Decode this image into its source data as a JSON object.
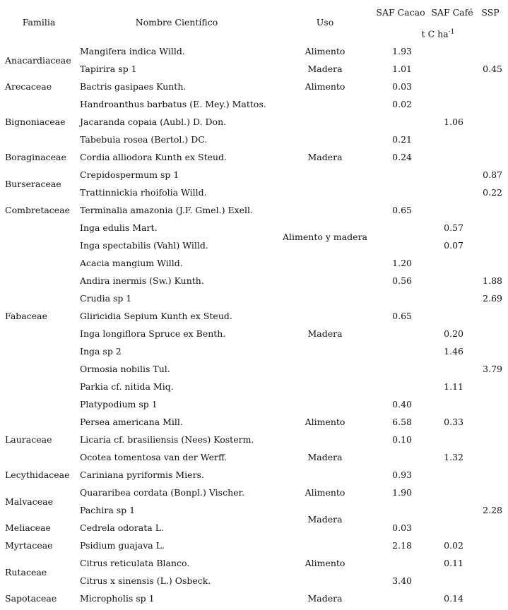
{
  "header": {
    "familia": "Familia",
    "nombre": "Nombre Científico",
    "uso": "Uso",
    "cacao": "SAF Cacao",
    "cafe": "SAF Café",
    "ssp": "SSP",
    "units": {
      "text": "t C ha",
      "sup": "-1"
    }
  },
  "families": [
    {
      "name": "Anacardiaceae",
      "species": [
        {
          "name": "Mangifera indica Willd.",
          "cacao": "1.93",
          "cafe": null,
          "ssp": null
        },
        {
          "name": "Tapirira sp 1",
          "cacao": "1.01",
          "cafe": null,
          "ssp": "0.45"
        }
      ]
    },
    {
      "name": "Arecaceae",
      "species": [
        {
          "name": "Bactris gasipaes Kunth.",
          "cacao": "0.03",
          "cafe": null,
          "ssp": null
        }
      ]
    },
    {
      "name": "Bignoniaceae",
      "species": [
        {
          "name": "Handroanthus barbatus (E. Mey.) Mattos.",
          "cacao": "0.02",
          "cafe": null,
          "ssp": null
        },
        {
          "name": "Jacaranda copaia (Aubl.) D. Don.",
          "cacao": null,
          "cafe": "1.06",
          "ssp": null
        },
        {
          "name": "Tabebuia rosea (Bertol.) DC.",
          "cacao": "0.21",
          "cafe": null,
          "ssp": null
        }
      ]
    },
    {
      "name": "Boraginaceae",
      "species": [
        {
          "name": "Cordia alliodora Kunth ex Steud.",
          "cacao": "0.24",
          "cafe": null,
          "ssp": null
        }
      ]
    },
    {
      "name": "Burseraceae",
      "species": [
        {
          "name": "Crepidospermum sp 1",
          "cacao": null,
          "cafe": null,
          "ssp": "0.87"
        },
        {
          "name": "Trattinnickia rhoifolia Willd.",
          "cacao": null,
          "cafe": null,
          "ssp": "0.22"
        }
      ]
    },
    {
      "name": "Combretaceae",
      "species": [
        {
          "name": "Terminalia amazonia (J.F. Gmel.) Exell.",
          "cacao": "0.65",
          "cafe": null,
          "ssp": null
        }
      ]
    },
    {
      "name": "Fabaceae",
      "species": [
        {
          "name": "Inga edulis Mart.",
          "cacao": null,
          "cafe": "0.57",
          "ssp": null
        },
        {
          "name": "Inga spectabilis (Vahl) Willd.",
          "cacao": null,
          "cafe": "0.07",
          "ssp": null
        },
        {
          "name": "Acacia mangium Willd.",
          "cacao": "1.20",
          "cafe": null,
          "ssp": null
        },
        {
          "name": "Andira inermis (Sw.) Kunth.",
          "cacao": "0.56",
          "cafe": null,
          "ssp": "1.88"
        },
        {
          "name": "Crudia sp 1",
          "cacao": null,
          "cafe": null,
          "ssp": "2.69"
        },
        {
          "name": "Gliricidia Sepium Kunth ex Steud.",
          "cacao": "0.65",
          "cafe": null,
          "ssp": null
        },
        {
          "name": "Inga longiflora Spruce ex Benth.",
          "cacao": null,
          "cafe": "0.20",
          "ssp": null
        },
        {
          "name": "Inga sp 2",
          "cacao": null,
          "cafe": "1.46",
          "ssp": null
        },
        {
          "name": "Ormosia nobilis Tul.",
          "cacao": null,
          "cafe": null,
          "ssp": "3.79"
        },
        {
          "name": "Parkia cf. nitida Miq.",
          "cacao": null,
          "cafe": "1.11",
          "ssp": null
        },
        {
          "name": "Platypodium sp 1",
          "cacao": "0.40",
          "cafe": null,
          "ssp": null
        }
      ]
    },
    {
      "name": "Lauraceae",
      "species": [
        {
          "name": "Persea americana Mill.",
          "cacao": "6.58",
          "cafe": "0.33",
          "ssp": null
        },
        {
          "name": "Licaria cf. brasiliensis (Nees) Kosterm.",
          "cacao": "0.10",
          "cafe": null,
          "ssp": null
        },
        {
          "name": "Ocotea tomentosa van der Werff.",
          "cacao": null,
          "cafe": "1.32",
          "ssp": null
        }
      ]
    },
    {
      "name": "Lecythidaceae",
      "species": [
        {
          "name": "Cariniana pyriformis Miers.",
          "cacao": "0.93",
          "cafe": null,
          "ssp": null
        }
      ]
    },
    {
      "name": "Malvaceae",
      "species": [
        {
          "name": "Quararibea cordata (Bonpl.) Vischer.",
          "cacao": "1.90",
          "cafe": null,
          "ssp": null
        },
        {
          "name": "Pachira sp 1",
          "cacao": null,
          "cafe": null,
          "ssp": "2.28"
        }
      ]
    },
    {
      "name": "Meliaceae",
      "species": [
        {
          "name": "Cedrela odorata L.",
          "cacao": "0.03",
          "cafe": null,
          "ssp": null
        }
      ]
    },
    {
      "name": "Myrtaceae",
      "species": [
        {
          "name": "Psidium guajava L.",
          "cacao": "2.18",
          "cafe": "0.02",
          "ssp": null
        }
      ]
    },
    {
      "name": "Rutaceae",
      "species": [
        {
          "name": "Citrus reticulata Blanco.",
          "cacao": null,
          "cafe": "0.11",
          "ssp": null
        },
        {
          "name": "Citrus x sinensis (L.) Osbeck.",
          "cacao": "3.40",
          "cafe": null,
          "ssp": null
        }
      ]
    },
    {
      "name": "Sapotaceae",
      "species": [
        {
          "name": "Micropholis sp 1",
          "cacao": null,
          "cafe": "0.14",
          "ssp": null
        }
      ]
    }
  ],
  "uso_groups": [
    {
      "label": "Alimento",
      "rows": 1
    },
    {
      "label": "Madera",
      "rows": 1
    },
    {
      "label": "Alimento",
      "rows": 1
    },
    {
      "label": null,
      "rows": 3
    },
    {
      "label": "Madera",
      "rows": 1
    },
    {
      "label": null,
      "rows": 3
    },
    {
      "label": "Alimento y madera",
      "rows": 2
    },
    {
      "label": "Madera",
      "rows": 9
    },
    {
      "label": "Alimento",
      "rows": 1
    },
    {
      "label": null,
      "rows": 1
    },
    {
      "label": "Madera",
      "rows": 1
    },
    {
      "label": null,
      "rows": 1
    },
    {
      "label": "Alimento",
      "rows": 1
    },
    {
      "label": "Madera",
      "rows": 2
    },
    {
      "label": "Alimento",
      "rows": 3
    },
    {
      "label": "Madera",
      "rows": 1
    }
  ]
}
